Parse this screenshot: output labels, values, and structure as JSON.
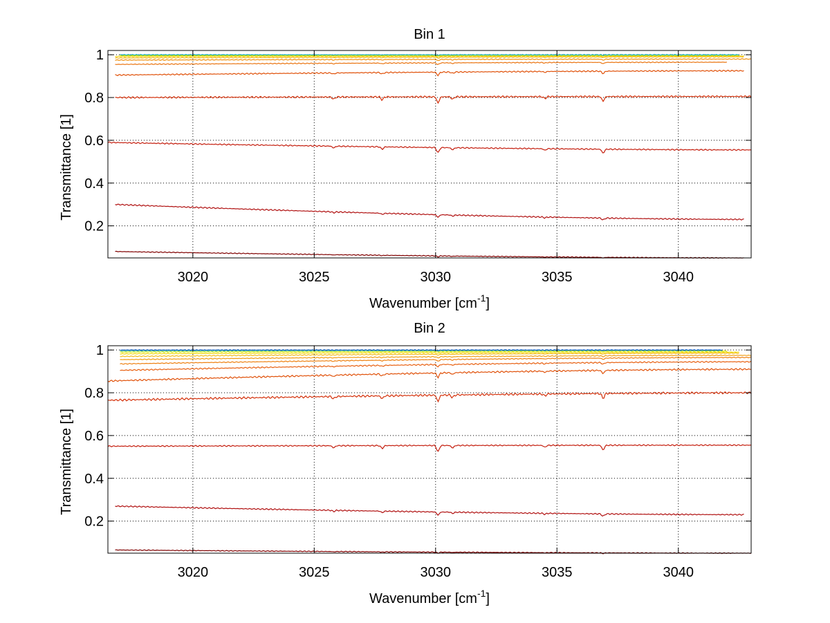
{
  "chart_data": [
    {
      "type": "line",
      "title": "Bin 1",
      "xlabel": "Wavenumber [cm",
      "xlabel_sup": "-1",
      "xlabel_suffix": "]",
      "ylabel": "Transmittance [1]",
      "xlim": [
        3016.5,
        3043
      ],
      "ylim": [
        0.05,
        1.02
      ],
      "xticks": [
        3020,
        3025,
        3030,
        3035,
        3040
      ],
      "yticks": [
        0.2,
        0.4,
        0.6,
        0.8,
        1
      ],
      "ytick_labels": [
        "0.2",
        "0.4",
        "0.6",
        "0.8",
        "1"
      ],
      "grid": true,
      "series": [
        {
          "color": "#800000",
          "x_range": [
            3016.8,
            3042.7
          ],
          "start": 0.08,
          "end": 0.05,
          "noise": 0.002,
          "dip": 0.004
        },
        {
          "color": "#b01010",
          "x_range": [
            3016.8,
            3042.7
          ],
          "start": 0.3,
          "end": 0.23,
          "noise": 0.003,
          "dip": 0.012
        },
        {
          "color": "#c41c0c",
          "x_range": [
            3016.5,
            3043.0
          ],
          "start": 0.59,
          "end": 0.555,
          "noise": 0.003,
          "dip": 0.025
        },
        {
          "color": "#d4300a",
          "x_range": [
            3016.8,
            3043.0
          ],
          "start": 0.8,
          "end": 0.805,
          "noise": 0.004,
          "dip": 0.03
        },
        {
          "color": "#e05008",
          "x_range": [
            3016.8,
            3042.7
          ],
          "start": 0.905,
          "end": 0.925,
          "noise": 0.003,
          "dip": 0.015
        },
        {
          "color": "#ea7410",
          "x_range": [
            3016.8,
            3042.0
          ],
          "start": 0.955,
          "end": 0.965,
          "noise": 0.002,
          "dip": 0.008
        },
        {
          "color": "#f09010",
          "x_range": [
            3016.8,
            3043.0
          ],
          "start": 0.975,
          "end": 0.98,
          "noise": 0.002,
          "dip": 0.006
        },
        {
          "color": "#f4b414",
          "x_range": [
            3016.8,
            3042.7
          ],
          "start": 0.985,
          "end": 0.99,
          "noise": 0.002,
          "dip": 0.004
        },
        {
          "color": "#f0d20e",
          "x_range": [
            3016.8,
            3042.7
          ],
          "start": 0.992,
          "end": 0.994,
          "noise": 0.002,
          "dip": 0.003
        },
        {
          "color": "#e8e600",
          "x_range": [
            3017.0,
            3042.5
          ],
          "start": 0.996,
          "end": 0.997,
          "noise": 0.002,
          "dip": 0.002
        },
        {
          "color": "#a8d820",
          "x_range": [
            3017.0,
            3042.5
          ],
          "start": 0.998,
          "end": 0.998,
          "noise": 0.002,
          "dip": 0.002
        },
        {
          "color": "#20b0c0",
          "x_range": [
            3017.0,
            3042.5
          ],
          "start": 1.0,
          "end": 1.0,
          "noise": 0.002,
          "dip": 0.002
        }
      ]
    },
    {
      "type": "line",
      "title": "Bin 2",
      "xlabel": "Wavenumber [cm",
      "xlabel_sup": "-1",
      "xlabel_suffix": "]",
      "ylabel": "Transmittance [1]",
      "xlim": [
        3016.5,
        3043
      ],
      "ylim": [
        0.05,
        1.02
      ],
      "xticks": [
        3020,
        3025,
        3030,
        3035,
        3040
      ],
      "yticks": [
        0.2,
        0.4,
        0.6,
        0.8,
        1
      ],
      "ytick_labels": [
        "0.2",
        "0.4",
        "0.6",
        "0.8",
        "1"
      ],
      "grid": true,
      "series": [
        {
          "color": "#800000",
          "x_range": [
            3016.8,
            3043.0
          ],
          "start": 0.065,
          "end": 0.05,
          "noise": 0.002,
          "dip": 0.004
        },
        {
          "color": "#b01010",
          "x_range": [
            3016.8,
            3042.7
          ],
          "start": 0.27,
          "end": 0.23,
          "noise": 0.003,
          "dip": 0.015
        },
        {
          "color": "#c41c0c",
          "x_range": [
            3016.5,
            3043.0
          ],
          "start": 0.55,
          "end": 0.555,
          "noise": 0.003,
          "dip": 0.03
        },
        {
          "color": "#d4300a",
          "x_range": [
            3016.5,
            3043.0
          ],
          "start": 0.765,
          "end": 0.8,
          "noise": 0.005,
          "dip": 0.03
        },
        {
          "color": "#e05008",
          "x_range": [
            3016.5,
            3043.0
          ],
          "start": 0.855,
          "end": 0.91,
          "noise": 0.004,
          "dip": 0.02
        },
        {
          "color": "#e86010",
          "x_range": [
            3017.0,
            3043.0
          ],
          "start": 0.905,
          "end": 0.945,
          "noise": 0.003,
          "dip": 0.01
        },
        {
          "color": "#ee8010",
          "x_range": [
            3017.0,
            3043.0
          ],
          "start": 0.935,
          "end": 0.965,
          "noise": 0.002,
          "dip": 0.008
        },
        {
          "color": "#f09c12",
          "x_range": [
            3017.0,
            3043.0
          ],
          "start": 0.955,
          "end": 0.975,
          "noise": 0.002,
          "dip": 0.005
        },
        {
          "color": "#f4bc14",
          "x_range": [
            3017.0,
            3042.5
          ],
          "start": 0.97,
          "end": 0.985,
          "noise": 0.002,
          "dip": 0.004
        },
        {
          "color": "#f0dc0e",
          "x_range": [
            3017.0,
            3042.5
          ],
          "start": 0.982,
          "end": 0.99,
          "noise": 0.002,
          "dip": 0.003
        },
        {
          "color": "#d8e810",
          "x_range": [
            3017.0,
            3042.0
          ],
          "start": 0.99,
          "end": 0.995,
          "noise": 0.002,
          "dip": 0.002
        },
        {
          "color": "#40b8a0",
          "x_range": [
            3017.0,
            3041.8
          ],
          "start": 0.996,
          "end": 0.998,
          "noise": 0.002,
          "dip": 0.002
        },
        {
          "color": "#1060c0",
          "x_range": [
            3017.0,
            3041.8
          ],
          "start": 1.0,
          "end": 1.0,
          "noise": 0.002,
          "dip": 0.002
        }
      ]
    }
  ]
}
